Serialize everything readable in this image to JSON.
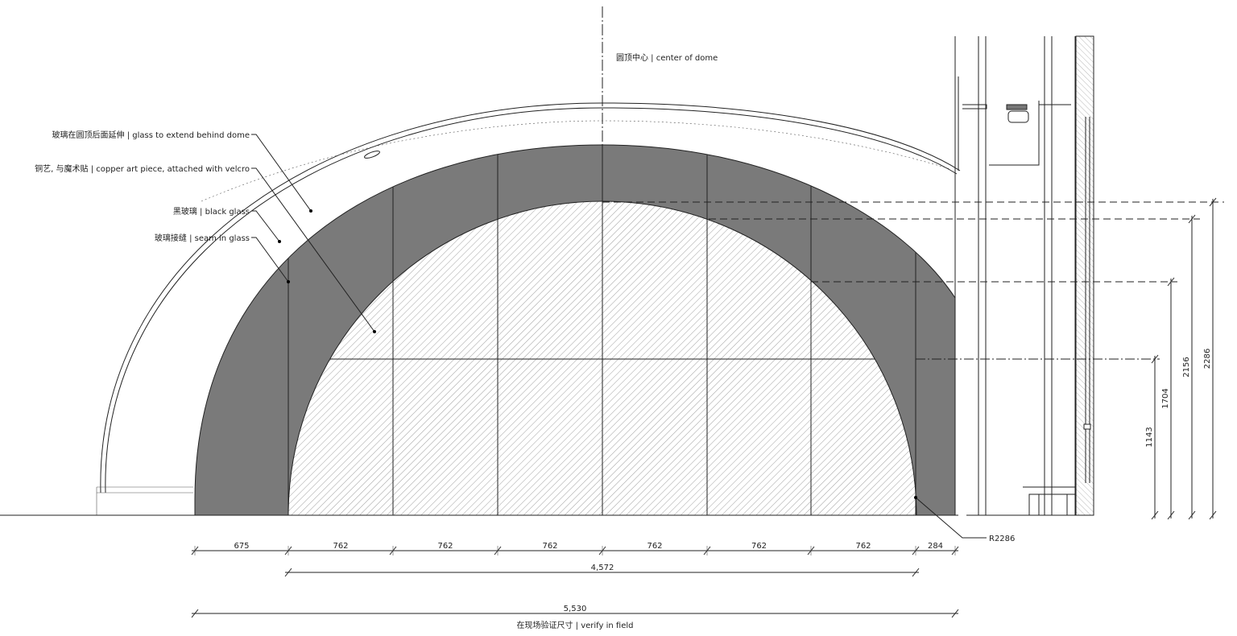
{
  "center_label": "圆顶中心 | center of dome",
  "notes": [
    {
      "label": "玻璃在圆顶后面延伸 | glass to extend behind dome"
    },
    {
      "label": "铜艺, 与魔术贴 | copper art piece, attached with velcro"
    },
    {
      "label": "黑玻璃 | black glass"
    },
    {
      "label": "玻璃接缝 | seam in glass"
    }
  ],
  "radius_label": "R2286",
  "horizontal_dims": [
    "675",
    "762",
    "762",
    "762",
    "762",
    "762",
    "762",
    "284"
  ],
  "inner_width": "4,572",
  "overall_width": "5,530",
  "verify_note": "在现场验证尺寸 | verify in field",
  "vertical_dims": [
    "1143",
    "1704",
    "2156",
    "2286"
  ]
}
